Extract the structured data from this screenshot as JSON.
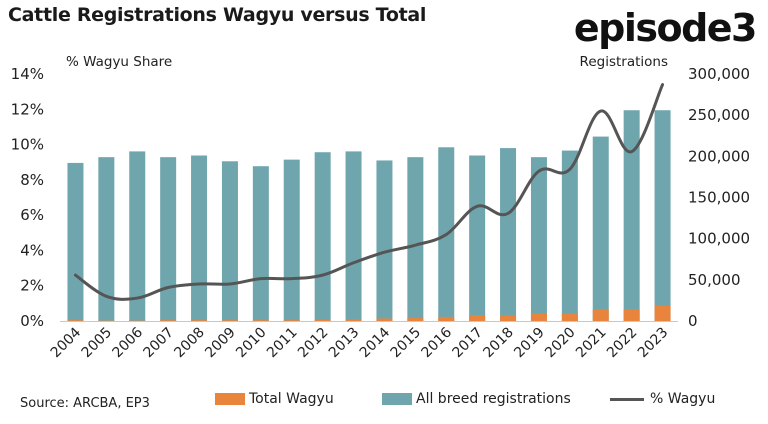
{
  "header": {
    "title": "Cattle Registrations Wagyu versus Total",
    "logo": "episode3"
  },
  "left_axis_caption": "% Wagyu Share",
  "right_axis_caption": "Registrations",
  "source": "Source: ARCBA, EP3",
  "colors": {
    "wagyu": "#E8843C",
    "all_breed": "#6FA6AE",
    "line": "#555555"
  },
  "chart_data": {
    "type": "bar",
    "categories": [
      "2004",
      "2005",
      "2006",
      "2007",
      "2008",
      "2009",
      "2010",
      "2011",
      "2012",
      "2013",
      "2014",
      "2015",
      "2016",
      "2017",
      "2018",
      "2019",
      "2020",
      "2021",
      "2022",
      "2023"
    ],
    "series": [
      {
        "name": "Total Wagyu",
        "axis": "right",
        "kind": "bar",
        "values": [
          1000,
          500,
          500,
          1000,
          1000,
          1000,
          1000,
          1000,
          1500,
          2000,
          3000,
          3500,
          5000,
          7000,
          6500,
          9000,
          9000,
          14000,
          14000,
          19000
        ]
      },
      {
        "name": "All breed registrations",
        "axis": "right",
        "kind": "bar",
        "values": [
          192000,
          199000,
          206000,
          199000,
          201000,
          194000,
          188000,
          196000,
          205000,
          206000,
          195000,
          199000,
          211000,
          201000,
          210000,
          199000,
          207000,
          224000,
          256000,
          256000
        ]
      },
      {
        "name": "% Wagyu",
        "axis": "left",
        "kind": "line",
        "values": [
          2.6,
          1.4,
          1.3,
          1.9,
          2.1,
          2.1,
          2.4,
          2.4,
          2.6,
          3.3,
          3.9,
          4.3,
          4.9,
          6.5,
          6.1,
          8.5,
          8.6,
          11.9,
          9.6,
          13.4
        ]
      }
    ],
    "y_left": {
      "ticks": [
        "0%",
        "2%",
        "4%",
        "6%",
        "8%",
        "10%",
        "12%",
        "14%"
      ],
      "range": [
        0,
        14
      ]
    },
    "y_right": {
      "ticks": [
        "0",
        "50,000",
        "100,000",
        "150,000",
        "200,000",
        "250,000",
        "300,000"
      ],
      "range": [
        0,
        300000
      ]
    },
    "grid": false,
    "legend_position": "bottom"
  },
  "legend": {
    "wagyu_label": "Total Wagyu",
    "all_breed_label": "All breed registrations",
    "pct_label": "% Wagyu"
  }
}
